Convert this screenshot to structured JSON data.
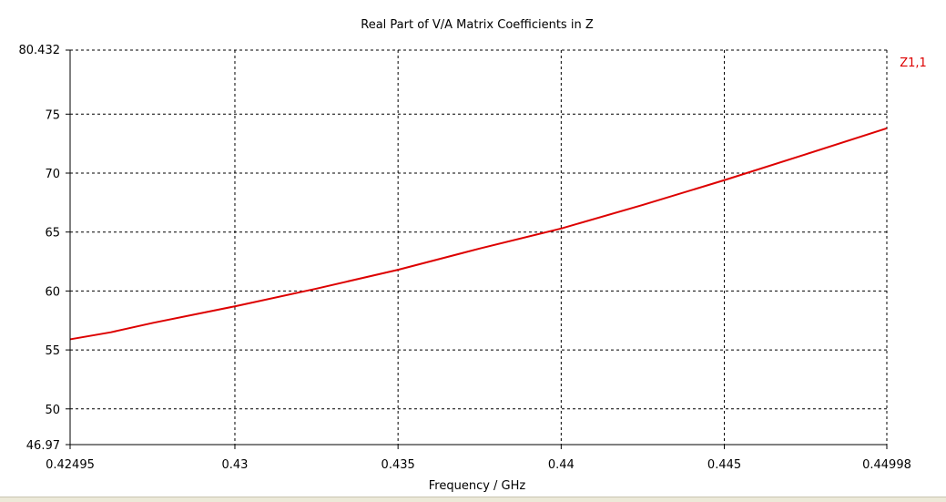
{
  "chart_data": {
    "type": "line",
    "title": "Real Part of V/A Matrix Coefficients in Z",
    "xlabel": "Frequency / GHz",
    "ylabel": "",
    "xlim": [
      0.42495,
      0.44998
    ],
    "ylim": [
      46.97,
      80.432
    ],
    "x_ticks": [
      {
        "value": 0.42495,
        "label": "0.42495"
      },
      {
        "value": 0.43,
        "label": "0.43"
      },
      {
        "value": 0.435,
        "label": "0.435"
      },
      {
        "value": 0.44,
        "label": "0.44"
      },
      {
        "value": 0.445,
        "label": "0.445"
      },
      {
        "value": 0.44998,
        "label": "0.44998"
      }
    ],
    "y_ticks": [
      {
        "value": 46.97,
        "label": "46.97"
      },
      {
        "value": 50,
        "label": "50"
      },
      {
        "value": 55,
        "label": "55"
      },
      {
        "value": 60,
        "label": "60"
      },
      {
        "value": 65,
        "label": "65"
      },
      {
        "value": 70,
        "label": "70"
      },
      {
        "value": 75,
        "label": "75"
      },
      {
        "value": 80.432,
        "label": "80.432"
      }
    ],
    "grid": true,
    "legend_position": "top-right",
    "series": [
      {
        "name": "Z1,1",
        "color": "#dd0000",
        "x": [
          0.42495,
          0.4262,
          0.4275,
          0.43,
          0.4325,
          0.435,
          0.4375,
          0.44,
          0.4425,
          0.445,
          0.4475,
          0.44998
        ],
        "y": [
          55.9,
          56.5,
          57.3,
          58.7,
          60.2,
          61.8,
          63.6,
          65.3,
          67.3,
          69.4,
          71.6,
          73.8
        ]
      }
    ]
  }
}
